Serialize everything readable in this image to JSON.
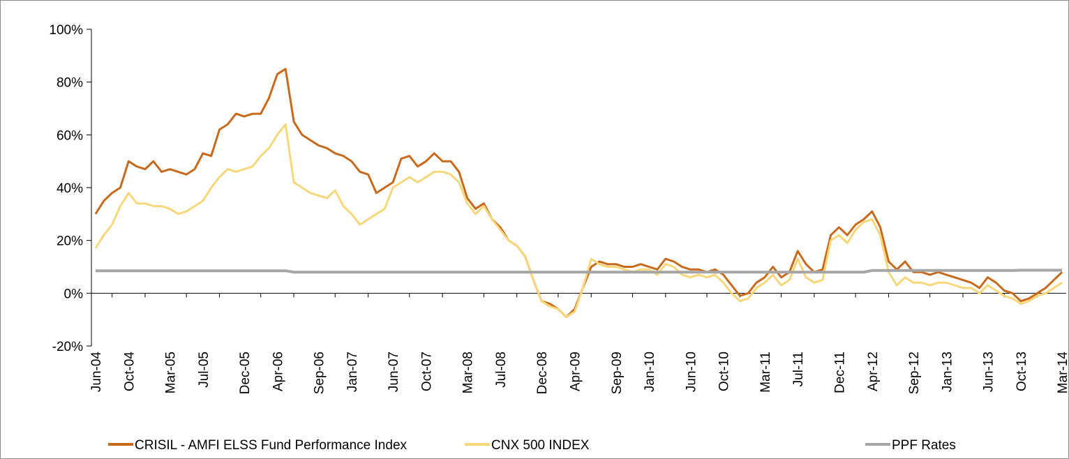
{
  "chart_data": {
    "type": "line",
    "categories": [
      "Jun-04",
      null,
      null,
      null,
      "Oct-04",
      null,
      null,
      null,
      null,
      "Mar-05",
      null,
      null,
      null,
      "Jul-05",
      null,
      null,
      null,
      null,
      "Dec-05",
      null,
      null,
      null,
      "Apr-06",
      null,
      null,
      null,
      null,
      "Sep-06",
      null,
      null,
      null,
      "Jan-07",
      null,
      null,
      null,
      null,
      "Jun-07",
      null,
      null,
      null,
      "Oct-07",
      null,
      null,
      null,
      null,
      "Mar-08",
      null,
      null,
      null,
      "Jul-08",
      null,
      null,
      null,
      null,
      "Dec-08",
      null,
      null,
      null,
      "Apr-09",
      null,
      null,
      null,
      null,
      "Sep-09",
      null,
      null,
      null,
      "Jan-10",
      null,
      null,
      null,
      null,
      "Jun-10",
      null,
      null,
      null,
      "Oct-10",
      null,
      null,
      null,
      null,
      "Mar-11",
      null,
      null,
      null,
      "Jul-11",
      null,
      null,
      null,
      null,
      "Dec-11",
      null,
      null,
      null,
      "Apr-12",
      null,
      null,
      null,
      null,
      "Sep-12",
      null,
      null,
      null,
      "Jan-13",
      null,
      null,
      null,
      null,
      "Jun-13",
      null,
      null,
      null,
      "Oct-13",
      null,
      null,
      null,
      null,
      "Mar-14"
    ],
    "series": [
      {
        "name": "CRISIL - AMFI ELSS Fund Performance Index",
        "color": "#c8691c",
        "values": [
          30,
          35,
          38,
          40,
          50,
          48,
          47,
          50,
          46,
          47,
          46,
          45,
          47,
          53,
          52,
          62,
          64,
          68,
          67,
          68,
          68,
          74,
          83,
          85,
          65,
          60,
          58,
          56,
          55,
          53,
          52,
          50,
          46,
          45,
          38,
          40,
          42,
          51,
          52,
          48,
          50,
          53,
          50,
          50,
          46,
          36,
          32,
          34,
          28,
          25,
          20,
          18,
          14,
          5,
          -3,
          -4,
          -6,
          -9,
          -6,
          2,
          10,
          12,
          11,
          11,
          10,
          10,
          11,
          10,
          9,
          13,
          12,
          10,
          9,
          9,
          8,
          9,
          7,
          3,
          -1,
          0,
          4,
          6,
          10,
          6,
          8,
          16,
          11,
          8,
          9,
          22,
          25,
          22,
          26,
          28,
          31,
          25,
          12,
          9,
          12,
          8,
          8,
          7,
          8,
          7,
          6,
          5,
          4,
          2,
          6,
          4,
          1,
          0,
          -3,
          -2,
          0,
          2,
          5,
          8
        ]
      },
      {
        "name": "CNX 500 INDEX",
        "color": "#f8d77a",
        "values": [
          17,
          22,
          26,
          33,
          38,
          34,
          34,
          33,
          33,
          32,
          30,
          31,
          33,
          35,
          40,
          44,
          47,
          46,
          47,
          48,
          52,
          55,
          60,
          64,
          42,
          40,
          38,
          37,
          36,
          39,
          33,
          30,
          26,
          28,
          30,
          32,
          40,
          42,
          44,
          42,
          44,
          46,
          46,
          45,
          42,
          34,
          30,
          33,
          28,
          24,
          20,
          18,
          14,
          5,
          -3,
          -5,
          -6,
          -9,
          -7,
          2,
          13,
          11,
          10,
          10,
          9,
          8,
          9,
          9,
          7,
          11,
          10,
          7,
          6,
          7,
          6,
          7,
          4,
          0,
          -3,
          -2,
          2,
          4,
          7,
          3,
          5,
          13,
          6,
          4,
          5,
          20,
          22,
          19,
          24,
          27,
          28,
          22,
          8,
          3,
          6,
          4,
          4,
          3,
          4,
          4,
          3,
          2,
          2,
          0,
          3,
          1,
          -1,
          -2,
          -4,
          -3,
          -1,
          0,
          2,
          4
        ]
      },
      {
        "name": "PPF Rates",
        "color": "#a6a6a6",
        "values": [
          8.5,
          8.5,
          8.5,
          8.5,
          8.5,
          8.5,
          8.5,
          8.5,
          8.5,
          8.5,
          8.5,
          8.5,
          8.5,
          8.5,
          8.5,
          8.5,
          8.5,
          8.5,
          8.5,
          8.5,
          8.5,
          8.5,
          8.5,
          8.5,
          8,
          8,
          8,
          8,
          8,
          8,
          8,
          8,
          8,
          8,
          8,
          8,
          8,
          8,
          8,
          8,
          8,
          8,
          8,
          8,
          8,
          8,
          8,
          8,
          8,
          8,
          8,
          8,
          8,
          8,
          8,
          8,
          8,
          8,
          8,
          8,
          8,
          8,
          8,
          8,
          8,
          8,
          8,
          8,
          8,
          8,
          8,
          8,
          8,
          8,
          8,
          8,
          8,
          8,
          8,
          8,
          8,
          8,
          8,
          8,
          8,
          8,
          8,
          8,
          8,
          8,
          8,
          8,
          8,
          8,
          8.6,
          8.6,
          8.6,
          8.6,
          8.6,
          8.6,
          8.6,
          8.6,
          8.6,
          8.6,
          8.6,
          8.6,
          8.6,
          8.6,
          8.6,
          8.6,
          8.6,
          8.6,
          8.7,
          8.7,
          8.7,
          8.7,
          8.7,
          8.7
        ]
      }
    ],
    "ylim": [
      -20,
      100
    ],
    "yticks": [
      {
        "value": -20,
        "label": "-20%"
      },
      {
        "value": 0,
        "label": "0%"
      },
      {
        "value": 20,
        "label": "20%"
      },
      {
        "value": 40,
        "label": "40%"
      },
      {
        "value": 60,
        "label": "60%"
      },
      {
        "value": 80,
        "label": "80%"
      },
      {
        "value": 100,
        "label": "100%"
      }
    ],
    "legend": "bottom"
  }
}
